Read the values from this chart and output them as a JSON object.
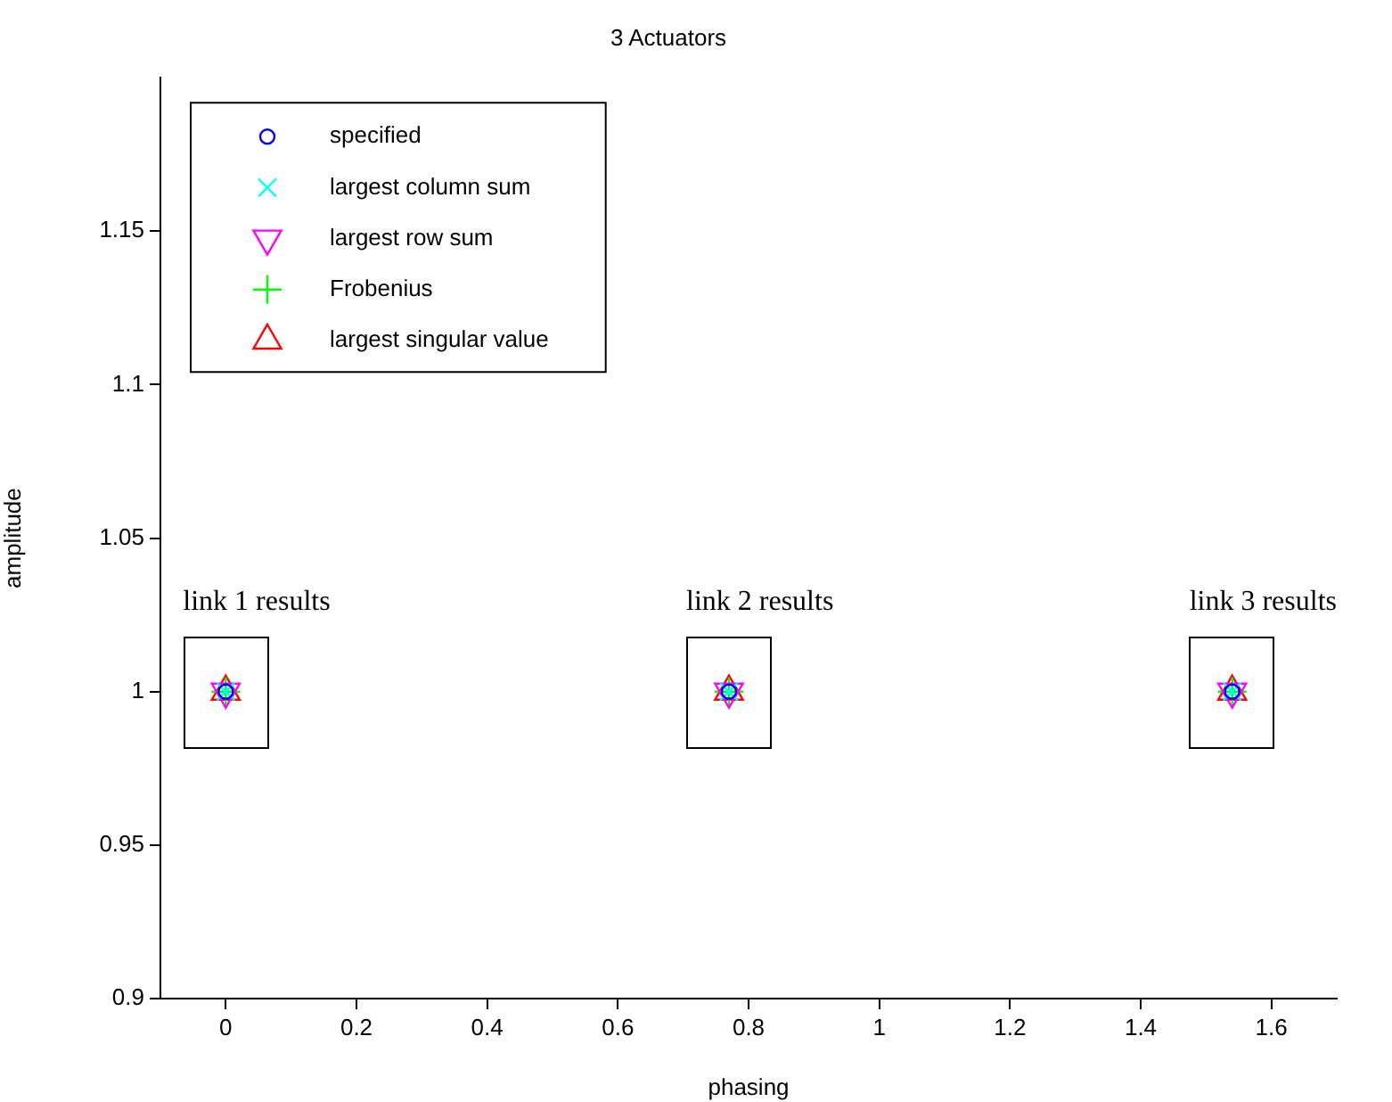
{
  "chart_data": {
    "type": "scatter",
    "title": "3 Actuators",
    "xlabel": "phasing",
    "ylabel": "amplitude",
    "x": [
      0,
      0.77,
      1.54
    ],
    "series": [
      {
        "name": "specified",
        "color": "#0000ff",
        "marker": "circle",
        "values": [
          1,
          1,
          1
        ]
      },
      {
        "name": "largest column sum",
        "color": "#00ffff",
        "marker": "x",
        "values": [
          1,
          1,
          1
        ]
      },
      {
        "name": "largest row sum",
        "color": "#ff00ff",
        "marker": "triangle-down",
        "values": [
          1,
          1,
          1
        ]
      },
      {
        "name": "Frobenius",
        "color": "#00ff00",
        "marker": "plus",
        "values": [
          1,
          1,
          1
        ]
      },
      {
        "name": "largest singular value",
        "color": "#ff0000",
        "marker": "triangle",
        "values": [
          1,
          1,
          1
        ]
      }
    ],
    "xlim": [
      -0.1,
      1.7
    ],
    "xticks": [
      0,
      0.2,
      0.4,
      0.6,
      0.8,
      1,
      1.2,
      1.4,
      1.6
    ],
    "ylim": [
      0.9,
      1.2
    ],
    "yticks": [
      0.9,
      0.95,
      1,
      1.05,
      1.1,
      1.15
    ],
    "grid": false,
    "legend": "top left",
    "annotations": [
      "link 1 results",
      "link 2 results",
      "link 3 results"
    ]
  }
}
